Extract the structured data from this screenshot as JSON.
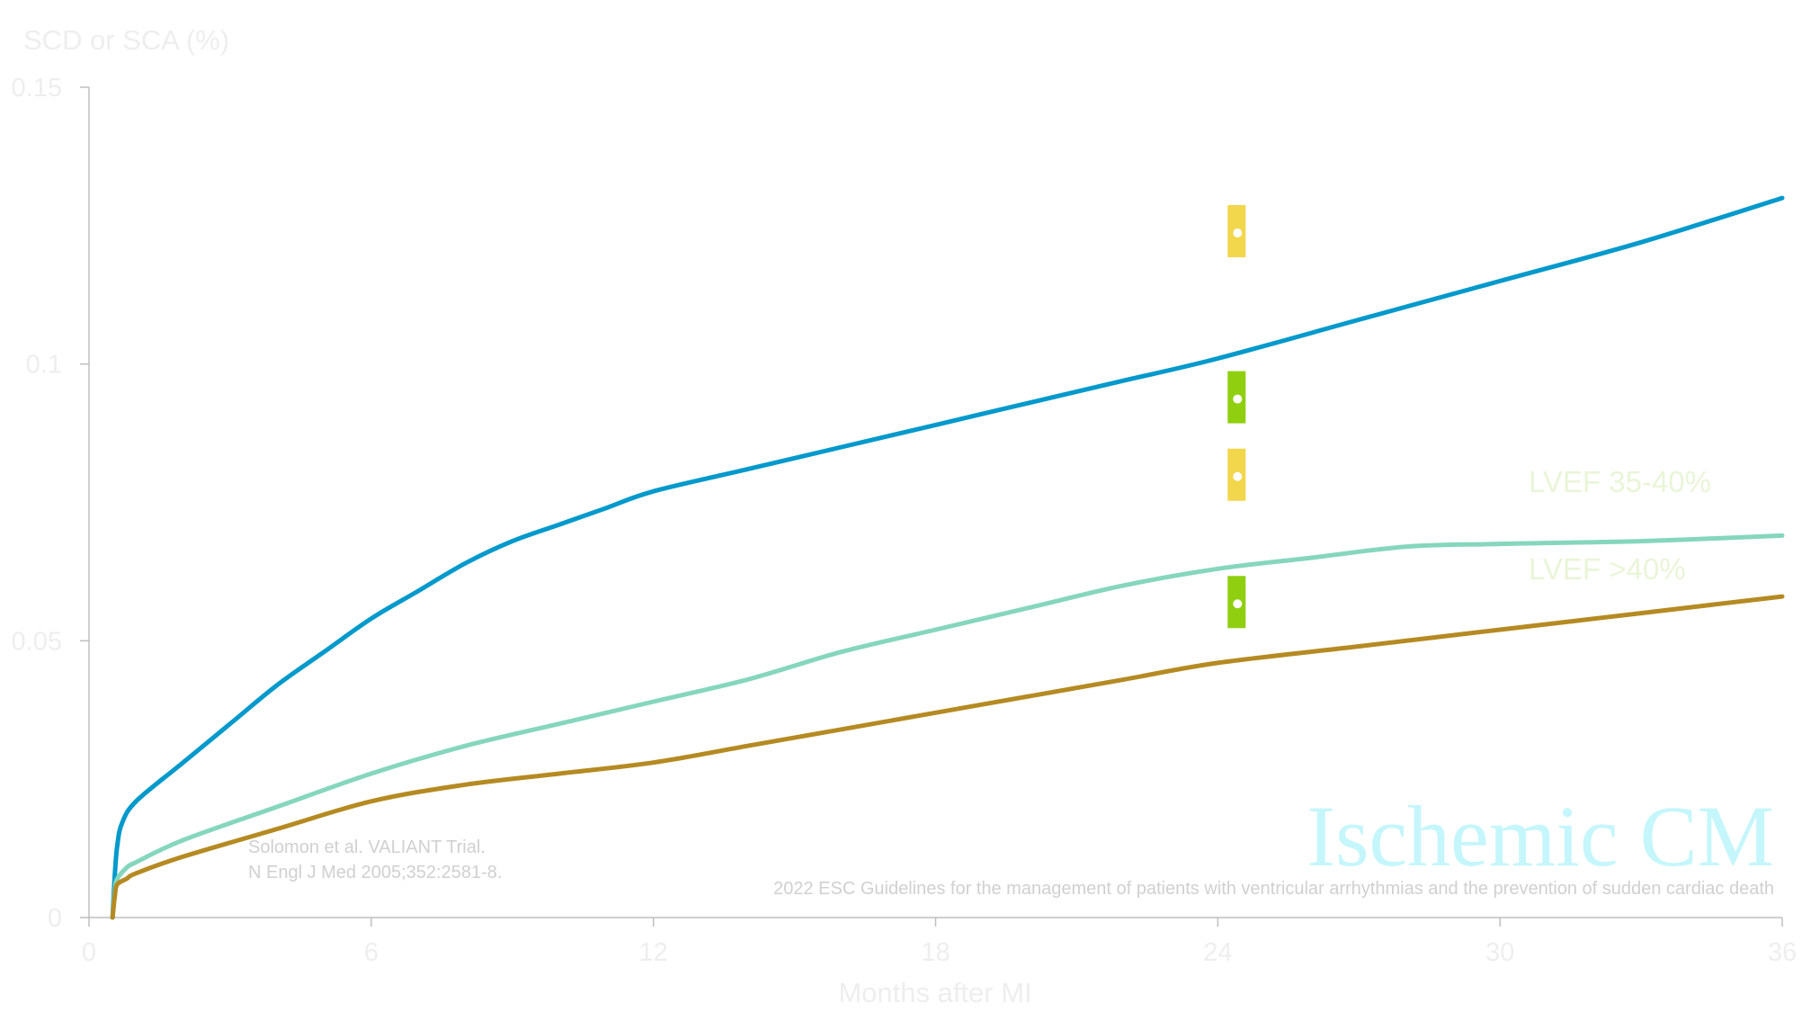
{
  "chart_data": {
    "type": "line",
    "ylabel": "SCD or SCA (%)",
    "xlabel": "Months after MI",
    "xlim": [
      0,
      36
    ],
    "ylim": [
      0,
      0.15
    ],
    "x_ticks": [
      "0",
      "6",
      "12",
      "18",
      "24",
      "30",
      "36"
    ],
    "y_ticks": [
      "0",
      "0.05",
      "0.1",
      "0.15"
    ],
    "grid": false,
    "series": [
      {
        "name": "",
        "color": "#0099cc",
        "points": [
          [
            0.5,
            0
          ],
          [
            0.55,
            0.008
          ],
          [
            0.6,
            0.013
          ],
          [
            0.7,
            0.017
          ],
          [
            1,
            0.021
          ],
          [
            2,
            0.028
          ],
          [
            3,
            0.035
          ],
          [
            4,
            0.042
          ],
          [
            5,
            0.048
          ],
          [
            6,
            0.054
          ],
          [
            7,
            0.059
          ],
          [
            8,
            0.064
          ],
          [
            9,
            0.068
          ],
          [
            10,
            0.071
          ],
          [
            11,
            0.074
          ],
          [
            12,
            0.077
          ],
          [
            14,
            0.081
          ],
          [
            16,
            0.085
          ],
          [
            18,
            0.089
          ],
          [
            20,
            0.093
          ],
          [
            22,
            0.097
          ],
          [
            24,
            0.101
          ],
          [
            27,
            0.108
          ],
          [
            30,
            0.115
          ],
          [
            33,
            0.122
          ],
          [
            36,
            0.13
          ]
        ]
      },
      {
        "name": "LVEF 35-40%",
        "color": "#85d6bd",
        "points": [
          [
            0.5,
            0
          ],
          [
            0.55,
            0.005
          ],
          [
            0.6,
            0.007
          ],
          [
            0.8,
            0.009
          ],
          [
            1,
            0.01
          ],
          [
            2,
            0.014
          ],
          [
            4,
            0.02
          ],
          [
            6,
            0.026
          ],
          [
            8,
            0.031
          ],
          [
            10,
            0.035
          ],
          [
            12,
            0.039
          ],
          [
            14,
            0.043
          ],
          [
            16,
            0.048
          ],
          [
            18,
            0.052
          ],
          [
            20,
            0.056
          ],
          [
            22,
            0.06
          ],
          [
            24,
            0.063
          ],
          [
            26,
            0.065
          ],
          [
            28,
            0.067
          ],
          [
            30,
            0.0675
          ],
          [
            33,
            0.068
          ],
          [
            36,
            0.069
          ]
        ]
      },
      {
        "name": "LVEF >40%",
        "color": "#b58a22",
        "points": [
          [
            0.5,
            0
          ],
          [
            0.55,
            0.004
          ],
          [
            0.6,
            0.006
          ],
          [
            0.8,
            0.007
          ],
          [
            1,
            0.008
          ],
          [
            2,
            0.011
          ],
          [
            4,
            0.016
          ],
          [
            6,
            0.021
          ],
          [
            8,
            0.024
          ],
          [
            10,
            0.026
          ],
          [
            12,
            0.028
          ],
          [
            14,
            0.031
          ],
          [
            16,
            0.034
          ],
          [
            18,
            0.037
          ],
          [
            20,
            0.04
          ],
          [
            22,
            0.043
          ],
          [
            24,
            0.046
          ],
          [
            27,
            0.049
          ],
          [
            30,
            0.052
          ],
          [
            33,
            0.055
          ],
          [
            36,
            0.058
          ]
        ]
      }
    ],
    "markers": [
      {
        "x": 24.4,
        "y": 0.124,
        "color": "#f2d64b"
      },
      {
        "x": 24.4,
        "y": 0.094,
        "color": "#8fcf10"
      },
      {
        "x": 24.4,
        "y": 0.08,
        "color": "#f2d64b"
      },
      {
        "x": 24.4,
        "y": 0.057,
        "color": "#8fcf10"
      }
    ],
    "annotations": {
      "source_lines": [
        "Solomon et al. VALIANT Trial.",
        "N Engl J Med 2005;352:2581-8."
      ],
      "brand": "Ischemic CM",
      "footer": "2022 ESC Guidelines for the management of patients with ventricular arrhythmias and the prevention of sudden cardiac death"
    }
  },
  "colors": {
    "axis": "#bfbfbf",
    "muted_text": "#eeeeee",
    "legend_text": "#e9f5d8",
    "note_text": "#d0d0d0",
    "brand_text": "#c5f6fb"
  }
}
